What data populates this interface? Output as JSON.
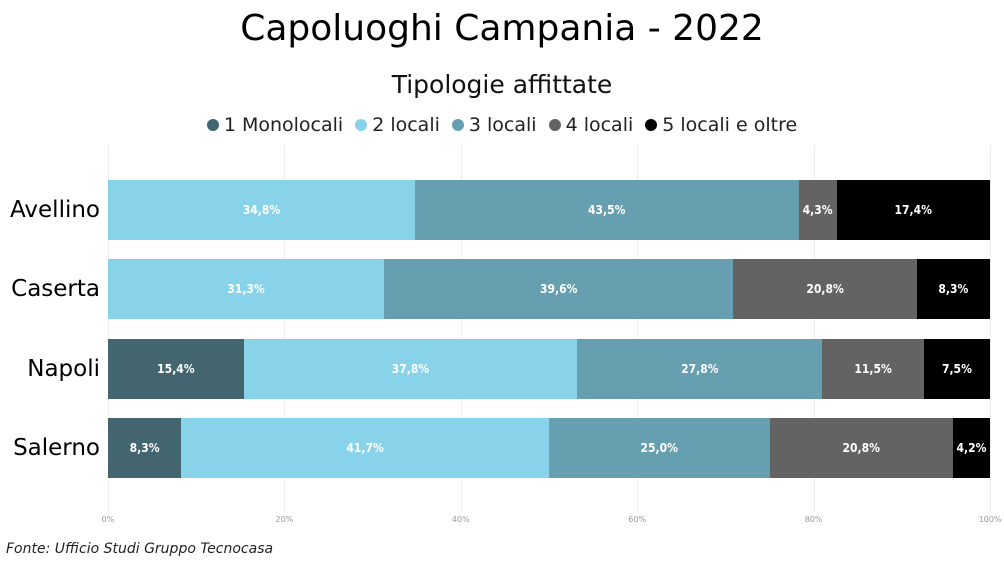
{
  "title": "Capoluoghi Campania - 2022",
  "chart_data": {
    "type": "bar",
    "orientation": "horizontal-stacked-100",
    "title": "Capoluoghi Campania - 2022",
    "subtitle": "Tipologie affittate",
    "categories": [
      "Avellino",
      "Caserta",
      "Napoli",
      "Salerno"
    ],
    "series": [
      {
        "name": "1 Monolocali",
        "color": "#436570",
        "values": [
          0,
          0,
          15.4,
          8.3
        ],
        "labels": [
          "",
          "",
          "15,4%",
          "8,3%"
        ]
      },
      {
        "name": "2 locali",
        "color": "#89d3ea",
        "values": [
          34.8,
          31.3,
          37.8,
          41.7
        ],
        "labels": [
          "34,8%",
          "31,3%",
          "37,8%",
          "41,7%"
        ]
      },
      {
        "name": "3 locali",
        "color": "#669faf",
        "values": [
          43.5,
          39.6,
          27.8,
          25.0
        ],
        "labels": [
          "43,5%",
          "39,6%",
          "27,8%",
          "25,0%"
        ]
      },
      {
        "name": "4 locali",
        "color": "#636363",
        "values": [
          4.3,
          20.8,
          11.5,
          20.8
        ],
        "labels": [
          "4,3%",
          "20,8%",
          "11,5%",
          "20,8%"
        ]
      },
      {
        "name": "5 locali e oltre",
        "color": "#000000",
        "values": [
          17.4,
          8.3,
          7.5,
          4.2
        ],
        "labels": [
          "17,4%",
          "8,3%",
          "7,5%",
          "4,2%"
        ]
      }
    ],
    "xticks": [
      "0%",
      "20%",
      "40%",
      "60%",
      "80%",
      "100%"
    ],
    "xlim": [
      0,
      100
    ],
    "grid": true,
    "legend_position": "top-center"
  },
  "source": "Fonte: Ufficio Studi Gruppo Tecnocasa"
}
